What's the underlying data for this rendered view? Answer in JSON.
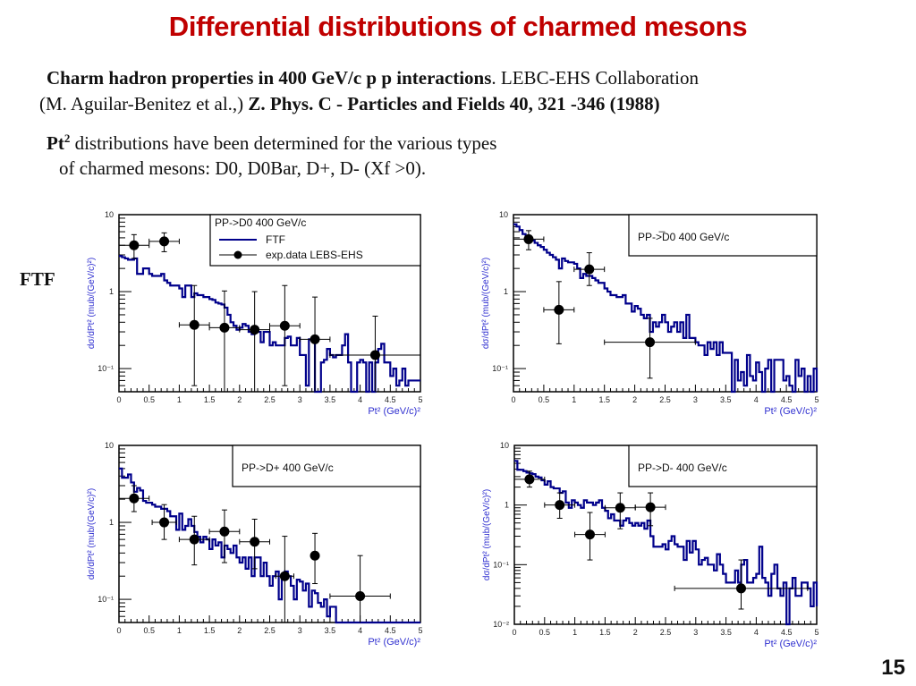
{
  "slide": {
    "title": "Differential distributions of charmed mesons",
    "citation": {
      "line1_bold": "Charm hadron properties in 400 GeV/c p p interactions",
      "line1_rest": ".  LEBC-EHS Collaboration",
      "line2_plain": "(M. Aguilar-Benitez et al.,) ",
      "line2_bold": "Z. Phys. C - Particles and Fields 40, 321 -346 (1988)"
    },
    "description": {
      "pt_bold": "Pt",
      "pt_sup": "2",
      "line1_rest": " distributions   have been determined for the various types",
      "line2": "of charmed mesons: D0, D0Bar, D+, D-  (Xf >0)."
    },
    "side_label": "FTF",
    "page_number": "15"
  },
  "colors": {
    "title": "#c00000",
    "model_line": "#00008b",
    "data_points": "#000000",
    "axis_label": "#3030d0"
  },
  "chart_data": [
    {
      "id": "d0",
      "type": "line",
      "title": "PP->D0   400 GeV/c",
      "xlabel": "Pt² (GeV/c)²",
      "ylabel": "dσ/dPt² (mub/(GeV/c)²)",
      "xlim": [
        0,
        5
      ],
      "ylim": [
        0.05,
        10
      ],
      "yscale": "log",
      "xticks": [
        "0",
        "0.5",
        "1",
        "1.5",
        "2",
        "2.5",
        "3",
        "3.5",
        "4",
        "4.5",
        "5"
      ],
      "yticks": [
        {
          "v": 10,
          "label": "10"
        },
        {
          "v": 1,
          "label": "1"
        },
        {
          "v": 0.1,
          "label": "10⁻¹"
        }
      ],
      "legend": {
        "placement": "top-right",
        "entries": [
          "FTF",
          "exp.data LEBS-EHS"
        ]
      },
      "series": [
        {
          "name": "FTF",
          "kind": "step",
          "bin_width": 0.05,
          "values": [
            2.9,
            2.8,
            2.7,
            2.6,
            2.6,
            2.7,
            1.7,
            1.7,
            2.0,
            2.0,
            1.7,
            1.6,
            1.6,
            1.6,
            1.7,
            1.4,
            1.3,
            1.2,
            1.2,
            1.2,
            1.1,
            0.85,
            1.2,
            1.2,
            0.85,
            0.95,
            0.9,
            0.9,
            0.85,
            0.85,
            0.8,
            0.78,
            0.72,
            0.7,
            0.68,
            0.62,
            0.5,
            0.4,
            0.36,
            0.32,
            0.34,
            0.38,
            0.36,
            0.3,
            0.28,
            0.32,
            0.3,
            0.22,
            0.3,
            0.3,
            0.2,
            0.22,
            0.2,
            0.2,
            0.2,
            0.25,
            0.26,
            0.2,
            0.2,
            0.25,
            0.15,
            0.15,
            0.06,
            0.24,
            0.25,
            0.05,
            0.05,
            0.12,
            0.13,
            0.18,
            0.15,
            0.14,
            0.15,
            0.15,
            0.2,
            0.28,
            0.12,
            0.05,
            0.05,
            0.12,
            0.13,
            0.12,
            0.05,
            0.12,
            0.05,
            0.12,
            0.18,
            0.21,
            0.12,
            0.12,
            0.08,
            0.1,
            0.06,
            0.07,
            0.1,
            0.06,
            0.07,
            0.07,
            0.07,
            0.07,
            0.07
          ]
        },
        {
          "name": "exp.data LEBS-EHS",
          "kind": "errorbar",
          "points": [
            {
              "x": 0.25,
              "y": 4.0,
              "xerr": 0.25,
              "ylo": 2.7,
              "yhi": 5.5
            },
            {
              "x": 0.75,
              "y": 4.5,
              "xerr": 0.25,
              "ylo": 3.3,
              "yhi": 5.8
            },
            {
              "x": 1.25,
              "y": 0.37,
              "xerr": 0.25,
              "ylo": 0.06,
              "yhi": 1.2
            },
            {
              "x": 1.75,
              "y": 0.34,
              "xerr": 0.25,
              "ylo": 0.05,
              "yhi": 1.02
            },
            {
              "x": 2.25,
              "y": 0.32,
              "xerr": 0.25,
              "ylo": 0.05,
              "yhi": 1.0
            },
            {
              "x": 2.75,
              "y": 0.36,
              "xerr": 0.25,
              "ylo": 0.06,
              "yhi": 1.2
            },
            {
              "x": 3.25,
              "y": 0.24,
              "xerr": 0.25,
              "ylo": 0.05,
              "yhi": 0.85
            },
            {
              "x": 4.25,
              "y": 0.15,
              "xerr": 0.75,
              "ylo": 0.05,
              "yhi": 0.48
            }
          ]
        }
      ]
    },
    {
      "id": "d0bar",
      "type": "line",
      "title": "PP->̅D0  400 GeV/c",
      "xlabel": "Pt² (GeV/c)²",
      "ylabel": "dσ/dPt² (mub/(GeV/c)²)",
      "xlim": [
        0,
        5
      ],
      "ylim": [
        0.05,
        10
      ],
      "yscale": "log",
      "xticks": [
        "0",
        "0.5",
        "1",
        "1.5",
        "2",
        "2.5",
        "3",
        "3.5",
        "4",
        "4.5",
        "5"
      ],
      "yticks": [
        {
          "v": 10,
          "label": "10"
        },
        {
          "v": 1,
          "label": "1"
        },
        {
          "v": 0.1,
          "label": "10⁻¹"
        }
      ],
      "legend": {
        "placement": "top-right",
        "entries": []
      },
      "series": [
        {
          "name": "FTF",
          "kind": "step",
          "bin_width": 0.05,
          "values": [
            7.5,
            7.0,
            6.3,
            5.6,
            5.2,
            4.9,
            4.6,
            4.3,
            4.0,
            3.8,
            3.5,
            3.2,
            3.0,
            2.8,
            2.6,
            2.0,
            2.7,
            2.5,
            2.4,
            2.4,
            2.3,
            2.0,
            1.5,
            1.7,
            1.6,
            1.6,
            1.5,
            1.4,
            1.3,
            1.3,
            1.1,
            1.0,
            0.9,
            0.9,
            0.85,
            0.85,
            0.9,
            0.7,
            0.7,
            0.55,
            0.65,
            0.6,
            0.5,
            0.45,
            0.5,
            0.3,
            0.4,
            0.35,
            0.4,
            0.5,
            0.4,
            0.3,
            0.35,
            0.4,
            0.3,
            0.4,
            0.25,
            0.5,
            0.25,
            0.25,
            0.22,
            0.2,
            0.2,
            0.15,
            0.22,
            0.18,
            0.22,
            0.15,
            0.22,
            0.16,
            0.16,
            0.16,
            0.05,
            0.13,
            0.07,
            0.09,
            0.06,
            0.15,
            0.08,
            0.07,
            0.12,
            0.09,
            0.05,
            0.1,
            0.13,
            0.05,
            0.13,
            0.13,
            0.13,
            0.07,
            0.08,
            0.06,
            0.05,
            0.13,
            0.08,
            0.1,
            0.05,
            0.08,
            0.05,
            0.1,
            0.05
          ]
        },
        {
          "name": "exp.data",
          "kind": "errorbar",
          "points": [
            {
              "x": 0.25,
              "y": 4.8,
              "xerr": 0.25,
              "ylo": 3.5,
              "yhi": 6.2
            },
            {
              "x": 0.75,
              "y": 0.58,
              "xerr": 0.25,
              "ylo": 0.21,
              "yhi": 1.35
            },
            {
              "x": 1.25,
              "y": 1.95,
              "xerr": 0.25,
              "ylo": 1.2,
              "yhi": 3.2
            },
            {
              "x": 2.25,
              "y": 0.22,
              "xerr": 0.75,
              "ylo": 0.075,
              "yhi": 0.45
            }
          ]
        }
      ]
    },
    {
      "id": "dplus",
      "type": "line",
      "title": "PP->D+   400 GeV/c",
      "xlabel": "Pt² (GeV/c)²",
      "ylabel": "dσ/dPt² (mub/(GeV/c)²)",
      "xlim": [
        0,
        5
      ],
      "ylim": [
        0.05,
        10
      ],
      "yscale": "log",
      "xticks": [
        "0",
        "0.5",
        "1",
        "1.5",
        "2",
        "2.5",
        "3",
        "3.5",
        "4",
        "4.5",
        "5"
      ],
      "yticks": [
        {
          "v": 10,
          "label": "10"
        },
        {
          "v": 1,
          "label": "1"
        },
        {
          "v": 0.1,
          "label": "10⁻¹"
        }
      ],
      "legend": {
        "placement": "top-right",
        "entries": []
      },
      "series": [
        {
          "name": "FTF",
          "kind": "step",
          "bin_width": 0.05,
          "values": [
            5.0,
            3.8,
            3.8,
            4.2,
            3.3,
            2.5,
            2.8,
            2.6,
            1.9,
            1.8,
            1.8,
            1.7,
            1.6,
            1.6,
            1.5,
            1.5,
            1.4,
            1.2,
            1.2,
            0.8,
            1.3,
            0.8,
            0.9,
            1.1,
            0.9,
            0.75,
            0.65,
            0.55,
            0.65,
            0.6,
            0.45,
            0.6,
            0.5,
            0.55,
            0.35,
            0.5,
            0.45,
            0.4,
            0.5,
            0.35,
            0.3,
            0.35,
            0.25,
            0.35,
            0.2,
            0.35,
            0.35,
            0.2,
            0.3,
            0.2,
            0.15,
            0.2,
            0.23,
            0.1,
            0.2,
            0.23,
            0.2,
            0.15,
            0.1,
            0.18,
            0.17,
            0.13,
            0.16,
            0.08,
            0.13,
            0.12,
            0.09,
            0.08,
            0.1,
            0.06,
            0.08,
            0.08,
            0.05,
            0.05,
            0.05,
            0.05,
            0.05,
            0.05,
            0.05,
            0.05,
            0.05,
            0.05,
            0.05,
            0.05,
            0.05,
            0.05,
            0.05,
            0.05,
            0.05,
            0.05,
            0.05,
            0.05,
            0.05,
            0.05,
            0.05,
            0.05,
            0.05,
            0.05,
            0.05,
            0.05,
            0.05
          ]
        },
        {
          "name": "exp.data",
          "kind": "errorbar",
          "points": [
            {
              "x": 0.25,
              "y": 2.05,
              "xerr": 0.25,
              "ylo": 1.38,
              "yhi": 3.0
            },
            {
              "x": 0.75,
              "y": 1.0,
              "xerr": 0.2,
              "ylo": 0.6,
              "yhi": 1.7
            },
            {
              "x": 1.25,
              "y": 0.6,
              "xerr": 0.25,
              "ylo": 0.28,
              "yhi": 1.2
            },
            {
              "x": 1.75,
              "y": 0.76,
              "xerr": 0.25,
              "ylo": 0.3,
              "yhi": 1.45
            },
            {
              "x": 2.25,
              "y": 0.56,
              "xerr": 0.25,
              "ylo": 0.25,
              "yhi": 1.1
            },
            {
              "x": 2.75,
              "y": 0.2,
              "xerr": 0.15,
              "ylo": 0.05,
              "yhi": 0.66
            },
            {
              "x": 3.25,
              "y": 0.37,
              "xerr": 0.0,
              "ylo": 0.16,
              "yhi": 0.72
            },
            {
              "x": 4.0,
              "y": 0.11,
              "xerr": 0.5,
              "ylo": 0.05,
              "yhi": 0.37
            }
          ]
        }
      ]
    },
    {
      "id": "dminus",
      "type": "line",
      "title": "PP->D-   400 GeV/c",
      "xlabel": "Pt² (GeV/c)²",
      "ylabel": "dσ/dPt² (mub/(GeV/c)²)",
      "xlim": [
        0,
        5
      ],
      "ylim": [
        0.01,
        10
      ],
      "yscale": "log",
      "xticks": [
        "0",
        "0.5",
        "1",
        "1.5",
        "2",
        "2.5",
        "3",
        "3.5",
        "4",
        "4.5",
        "5"
      ],
      "yticks": [
        {
          "v": 10,
          "label": "10"
        },
        {
          "v": 1,
          "label": "1"
        },
        {
          "v": 0.1,
          "label": "10⁻¹"
        },
        {
          "v": 0.01,
          "label": "10⁻²"
        }
      ],
      "legend": {
        "placement": "top-right",
        "entries": []
      },
      "series": [
        {
          "name": "FTF",
          "kind": "step",
          "bin_width": 0.05,
          "values": [
            5.5,
            3.9,
            3.9,
            3.7,
            3.5,
            3.4,
            3.3,
            3.0,
            2.9,
            2.6,
            2.2,
            2.5,
            2.0,
            1.9,
            1.9,
            1.6,
            1.7,
            1.1,
            0.9,
            1.2,
            1.1,
            1.0,
            0.9,
            1.2,
            1.1,
            1.1,
            1.0,
            1.1,
            1.2,
            0.9,
            0.8,
            0.6,
            0.7,
            0.55,
            0.55,
            0.45,
            0.55,
            0.6,
            0.5,
            0.45,
            0.5,
            0.45,
            0.5,
            0.4,
            0.55,
            0.3,
            0.2,
            0.2,
            0.2,
            0.22,
            0.18,
            0.25,
            0.3,
            0.22,
            0.2,
            0.2,
            0.12,
            0.25,
            0.16,
            0.25,
            0.18,
            0.1,
            0.12,
            0.13,
            0.1,
            0.1,
            0.08,
            0.15,
            0.1,
            0.07,
            0.05,
            0.05,
            0.05,
            0.08,
            0.05,
            0.1,
            0.12,
            0.05,
            0.05,
            0.06,
            0.07,
            0.2,
            0.06,
            0.05,
            0.03,
            0.07,
            0.1,
            0.04,
            0.03,
            0.05,
            0.01,
            0.04,
            0.06,
            0.03,
            0.03,
            0.05,
            0.05,
            0.04,
            0.02,
            0.05,
            0.02
          ]
        },
        {
          "name": "exp.data",
          "kind": "errorbar",
          "points": [
            {
              "x": 0.25,
              "y": 2.7,
              "xerr": 0.25,
              "ylo": 2.0,
              "yhi": 3.7
            },
            {
              "x": 0.75,
              "y": 1.0,
              "xerr": 0.25,
              "ylo": 0.6,
              "yhi": 1.6
            },
            {
              "x": 1.25,
              "y": 0.32,
              "xerr": 0.25,
              "ylo": 0.12,
              "yhi": 0.75
            },
            {
              "x": 1.75,
              "y": 0.9,
              "xerr": 0.25,
              "ylo": 0.4,
              "yhi": 1.6
            },
            {
              "x": 2.25,
              "y": 0.92,
              "xerr": 0.25,
              "ylo": 0.45,
              "yhi": 1.6
            },
            {
              "x": 3.75,
              "y": 0.04,
              "xerr": 1.1,
              "ylo": 0.018,
              "yhi": 0.12
            }
          ]
        }
      ]
    }
  ]
}
